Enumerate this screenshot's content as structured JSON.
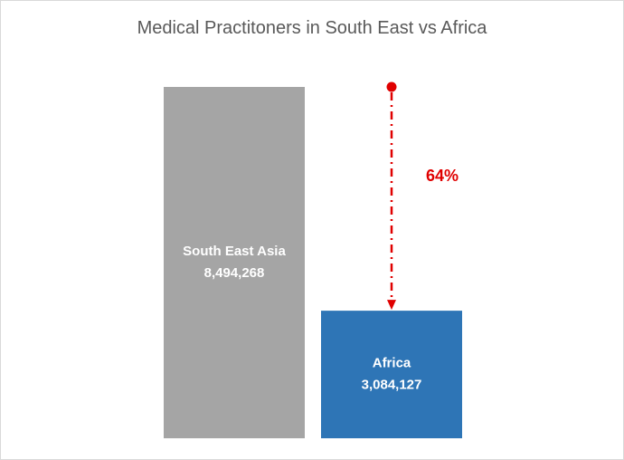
{
  "chart_data": {
    "type": "bar",
    "title": "Medical Practitoners in South East vs Africa",
    "categories": [
      "South East Asia",
      "Africa"
    ],
    "values": [
      8494268,
      3084127
    ],
    "value_labels": [
      "8,494,268",
      "3,084,127"
    ],
    "colors": [
      "#a5a5a5",
      "#2e75b6"
    ],
    "annotation": {
      "text": "64%",
      "color": "#e00000"
    },
    "grid": false,
    "legend": "none"
  }
}
